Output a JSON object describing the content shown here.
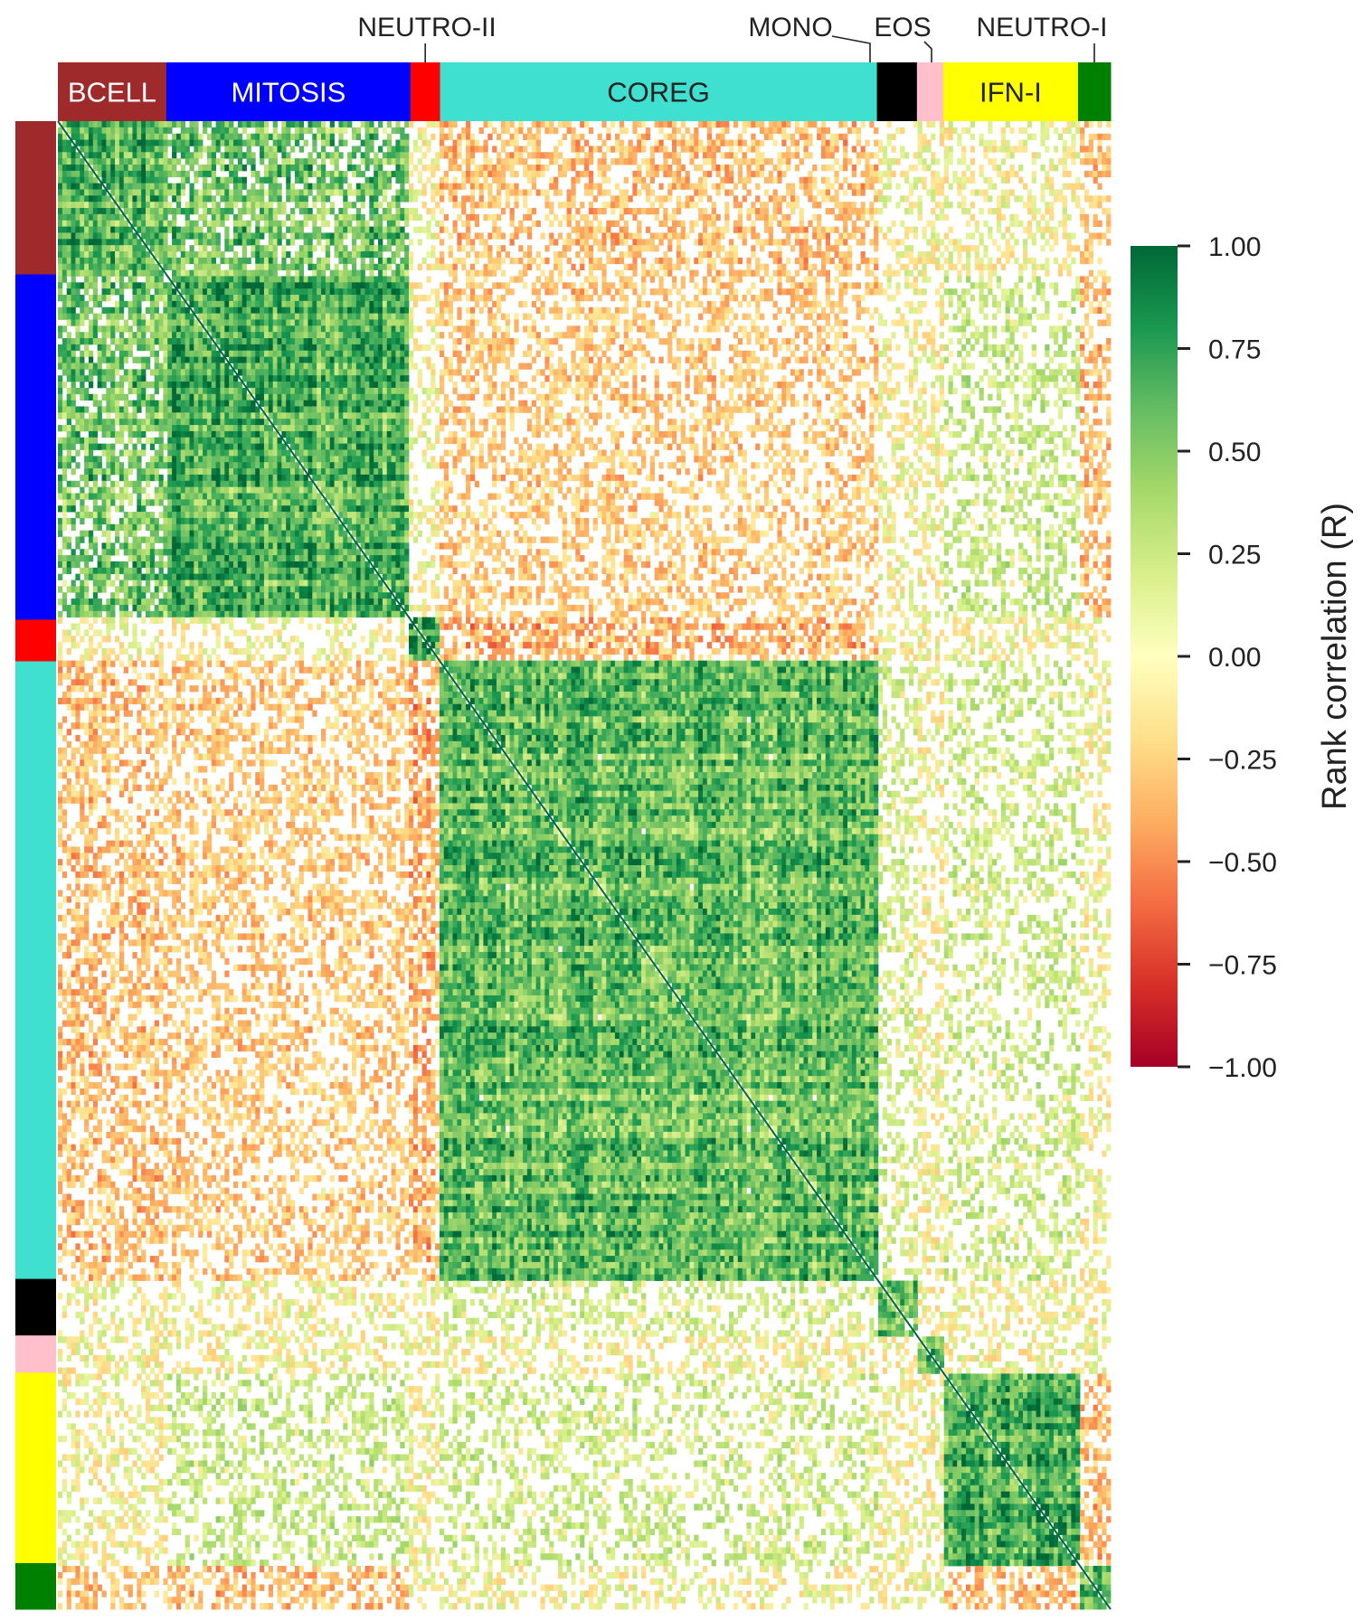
{
  "chart_data": {
    "type": "heatmap",
    "title": "",
    "matrix": "gene-module rank correlation matrix (symmetric, clustered)",
    "modules": [
      {
        "name": "BCELL",
        "color": "#9e2a2b",
        "start": 0.0,
        "end": 0.103
      },
      {
        "name": "MITOSIS",
        "color": "#0000ff",
        "start": 0.103,
        "end": 0.335
      },
      {
        "name": "NEUTRO-II",
        "color": "#ff0000",
        "start": 0.335,
        "end": 0.363
      },
      {
        "name": "COREG",
        "color": "#40e0d0",
        "start": 0.363,
        "end": 0.778
      },
      {
        "name": "MONO",
        "color": "#000000",
        "start": 0.778,
        "end": 0.816
      },
      {
        "name": "EOS",
        "color": "#ffc0cb",
        "start": 0.816,
        "end": 0.841
      },
      {
        "name": "IFN-I",
        "color": "#ffff00",
        "start": 0.841,
        "end": 0.969
      },
      {
        "name": "NEUTRO-I",
        "color": "#008000",
        "start": 0.969,
        "end": 1.0
      }
    ],
    "module_correlations": {
      "within": {
        "BCELL": 0.6,
        "MITOSIS": 0.7,
        "NEUTRO-II": 0.75,
        "COREG": 0.6,
        "MONO": 0.6,
        "EOS": 0.6,
        "IFN-I": 0.65,
        "NEUTRO-I": 0.6
      },
      "between": [
        {
          "a": "BCELL",
          "b": "MITOSIS",
          "r": 0.55
        },
        {
          "a": "BCELL",
          "b": "COREG",
          "r": -0.25
        },
        {
          "a": "MITOSIS",
          "b": "COREG",
          "r": -0.2
        },
        {
          "a": "NEUTRO-II",
          "b": "COREG",
          "r": -0.3
        },
        {
          "a": "MITOSIS",
          "b": "IFN-I",
          "r": 0.15
        },
        {
          "a": "COREG",
          "b": "IFN-I",
          "r": 0.12
        },
        {
          "a": "COREG",
          "b": "MONO",
          "r": 0.1
        },
        {
          "a": "NEUTRO-I",
          "b": "IFN-I",
          "r": -0.25
        },
        {
          "a": "NEUTRO-I",
          "b": "MITOSIS",
          "r": -0.25
        },
        {
          "a": "NEUTRO-I",
          "b": "BCELL",
          "r": -0.2
        }
      ]
    },
    "diagonal": 1.0,
    "colorbar": {
      "label": "Rank correlation (R)",
      "vmin": -1.0,
      "vmax": 1.0,
      "colormap": "RdYlGn",
      "ticks": [
        1.0,
        0.75,
        0.5,
        0.25,
        0.0,
        -0.25,
        -0.5,
        -0.75,
        -1.0
      ],
      "tick_labels": [
        "1.00",
        "0.75",
        "0.50",
        "0.25",
        "0.00",
        "−0.25",
        "−0.50",
        "−0.75",
        "−1.00"
      ]
    }
  }
}
